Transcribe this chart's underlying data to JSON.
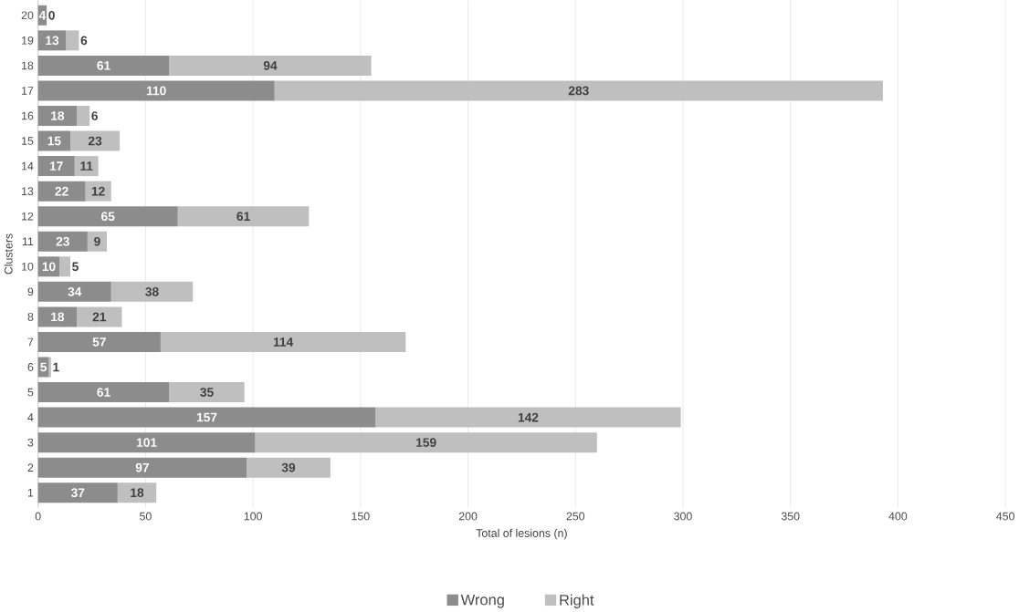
{
  "chart_data": {
    "type": "bar",
    "orientation": "horizontal",
    "stacked": true,
    "xlabel": "Total of lesions (n)",
    "ylabel": "Clusters",
    "categories": [
      "20",
      "19",
      "18",
      "17",
      "16",
      "15",
      "14",
      "13",
      "12",
      "11",
      "10",
      "9",
      "8",
      "7",
      "6",
      "5",
      "4",
      "3",
      "2",
      "1"
    ],
    "series": [
      {
        "name": "Wrong",
        "color": "#8c8c8c",
        "values": [
          4,
          13,
          61,
          110,
          18,
          15,
          17,
          22,
          65,
          23,
          10,
          34,
          18,
          57,
          5,
          61,
          157,
          101,
          97,
          37
        ]
      },
      {
        "name": "Right",
        "color": "#bfbfbf",
        "values": [
          0,
          6,
          94,
          283,
          6,
          23,
          11,
          12,
          61,
          9,
          5,
          38,
          21,
          114,
          1,
          35,
          142,
          159,
          39,
          18
        ]
      }
    ],
    "xlim": [
      0,
      450
    ],
    "xticks": [
      0,
      50,
      100,
      150,
      200,
      250,
      300,
      350,
      400,
      450
    ],
    "grid": "x",
    "legend": "bottom",
    "data_labels": true
  }
}
